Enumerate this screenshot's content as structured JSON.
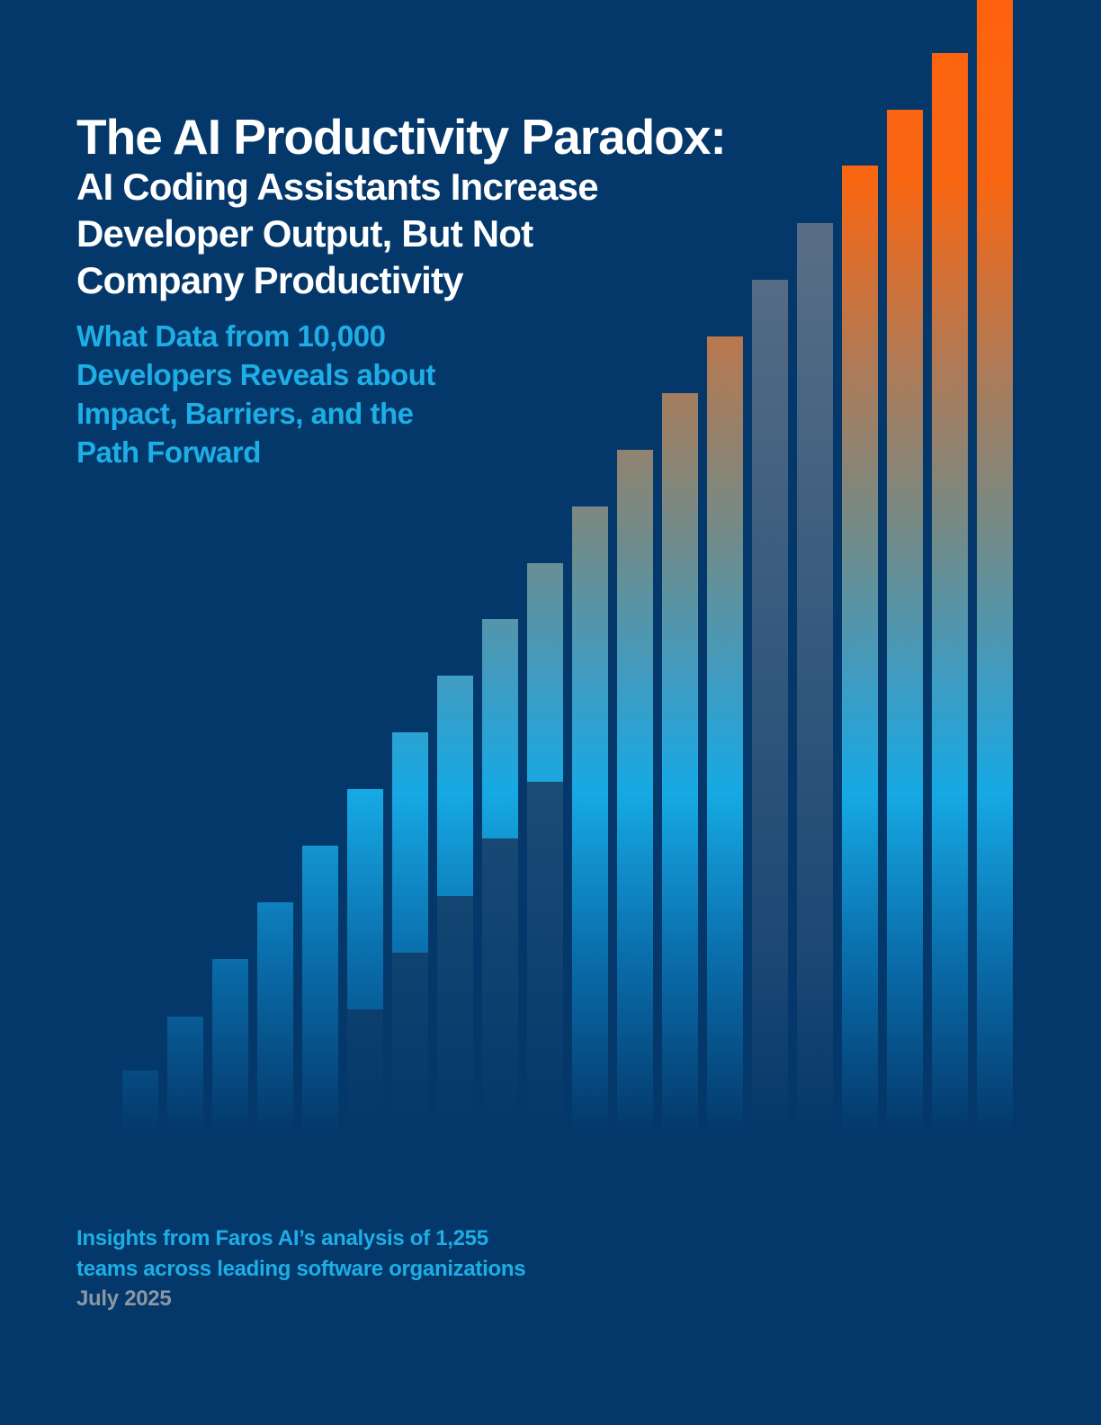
{
  "cover": {
    "title": "The AI Productivity Paradox:",
    "subtitle_lines": [
      "AI Coding Assistants Increase",
      "Developer Output, But Not",
      "Company Productivity"
    ],
    "tagline_lines": [
      "What Data from 10,000",
      "Developers Reveals about",
      "Impact, Barriers, and the",
      "Path Forward"
    ],
    "insights_lines": [
      "Insights from Faros AI’s analysis of 1,255",
      "teams  across leading software organizations"
    ],
    "date": "July 2025"
  },
  "colors": {
    "background": "#04386a",
    "bar_cyan": "#16a9e3",
    "bar_orange": "#ff620e",
    "bar_slate": "#5a6f86",
    "title_text": "#ffffff",
    "tagline_text": "#1eaee6",
    "date_text": "#8c97a4"
  },
  "decoration": {
    "style": "rising bar graphic",
    "bar_count": 20
  }
}
